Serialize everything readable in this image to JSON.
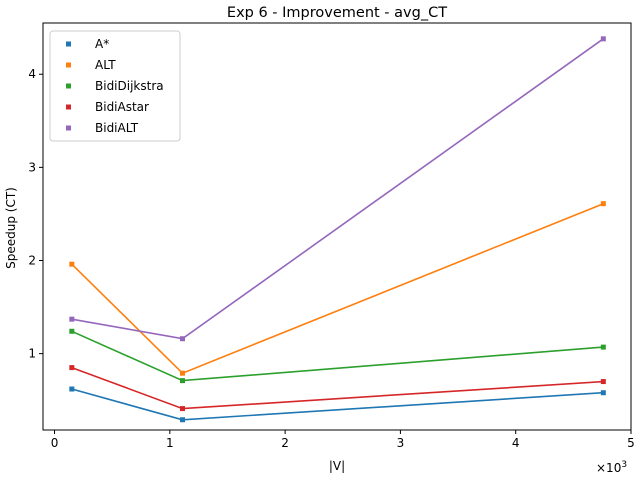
{
  "chart_data": {
    "type": "line",
    "title": "Exp 6 - Improvement - avg_CT",
    "xlabel": "|V|",
    "ylabel": "Speedup (CT)",
    "x_multiplier_label": "×10",
    "x_multiplier_exp": "3",
    "x": [
      150,
      1110,
      4760
    ],
    "xlim": [
      -100,
      5000
    ],
    "ylim": [
      0.18,
      4.55
    ],
    "xticks": [
      0,
      1000,
      2000,
      3000,
      4000,
      5000
    ],
    "xtick_labels": [
      "0",
      "1",
      "2",
      "3",
      "4",
      "5"
    ],
    "yticks": [
      1,
      2,
      3,
      4
    ],
    "ytick_labels": [
      "1",
      "2",
      "3",
      "4"
    ],
    "grid": false,
    "legend_position": "upper-left",
    "series": [
      {
        "name": "A*",
        "color": "#1f77b4",
        "values": [
          0.62,
          0.29,
          0.58
        ]
      },
      {
        "name": "ALT",
        "color": "#ff7f0e",
        "values": [
          1.96,
          0.79,
          2.61
        ]
      },
      {
        "name": "BidiDijkstra",
        "color": "#2ca02c",
        "values": [
          1.24,
          0.71,
          1.07
        ]
      },
      {
        "name": "BidiAstar",
        "color": "#d62728",
        "values": [
          0.85,
          0.41,
          0.7
        ]
      },
      {
        "name": "BidiALT",
        "color": "#9467bd",
        "values": [
          1.37,
          1.16,
          4.38
        ]
      }
    ]
  }
}
